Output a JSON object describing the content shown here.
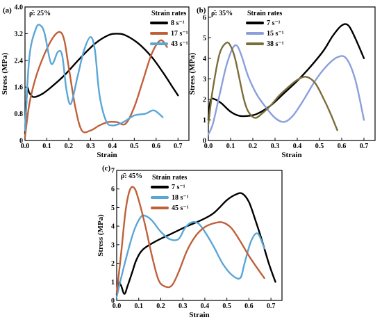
{
  "chart_data": [
    {
      "type": "line",
      "panel_label": "(a)",
      "density_label": "ρ̄: 25%",
      "legend_title": "Strain rates",
      "legend_position": "top-right",
      "xlabel": "Strain",
      "ylabel": "Stress (MPa)",
      "xlim": [
        0,
        0.75
      ],
      "ylim": [
        0,
        4.0
      ],
      "xticks": [
        "0.0",
        "0.1",
        "0.2",
        "0.3",
        "0.4",
        "0.5",
        "0.6",
        "0.7"
      ],
      "xtick_values": [
        0,
        0.1,
        0.2,
        0.3,
        0.4,
        0.5,
        0.6,
        0.7
      ],
      "yticks": [
        "0",
        "0.8",
        "1.6",
        "2.4",
        "3.2",
        "4.0"
      ],
      "ytick_values": [
        0,
        0.8,
        1.6,
        2.4,
        3.2,
        4.0
      ],
      "series": [
        {
          "name": "8 s⁻¹",
          "color": "#000000",
          "x": [
            0,
            0.01,
            0.02,
            0.04,
            0.08,
            0.12,
            0.18,
            0.25,
            0.32,
            0.38,
            0.42,
            0.46,
            0.52,
            0.58,
            0.63,
            0.67,
            0.7
          ],
          "y": [
            0.2,
            1.5,
            1.42,
            1.3,
            1.4,
            1.6,
            1.95,
            2.45,
            2.9,
            3.15,
            3.2,
            3.15,
            2.9,
            2.5,
            2.05,
            1.65,
            1.35
          ]
        },
        {
          "name": "17 s⁻¹",
          "color": "#c0603a",
          "x": [
            0,
            0.02,
            0.05,
            0.09,
            0.13,
            0.16,
            0.18,
            0.2,
            0.23,
            0.26,
            0.3,
            0.34,
            0.38,
            0.42,
            0.46,
            0.5,
            0.54,
            0.58,
            0.62,
            0.65
          ],
          "y": [
            0.1,
            1.1,
            1.9,
            2.6,
            3.1,
            3.25,
            3.0,
            2.2,
            1.0,
            0.3,
            0.3,
            0.45,
            0.55,
            0.55,
            0.5,
            1.0,
            1.8,
            2.6,
            3.0,
            2.8
          ]
        },
        {
          "name": "43 s⁻¹",
          "color": "#5aa6d6",
          "x": [
            0,
            0.02,
            0.05,
            0.07,
            0.09,
            0.12,
            0.15,
            0.17,
            0.19,
            0.21,
            0.24,
            0.27,
            0.3,
            0.32,
            0.34,
            0.37,
            0.4,
            0.45,
            0.5,
            0.55,
            0.59,
            0.63
          ],
          "y": [
            0.3,
            2.5,
            3.35,
            3.45,
            3.2,
            2.3,
            2.65,
            2.55,
            1.5,
            1.1,
            1.9,
            2.7,
            3.1,
            2.7,
            1.4,
            0.6,
            0.45,
            0.55,
            0.75,
            0.8,
            0.9,
            0.7
          ]
        }
      ]
    },
    {
      "type": "line",
      "panel_label": "(b)",
      "density_label": "ρ̄: 35%",
      "legend_title": "Strain rates",
      "legend_position": "top-left",
      "xlabel": "Strain",
      "ylabel": "Stress (MPa)",
      "xlim": [
        0,
        0.75
      ],
      "ylim": [
        0,
        6.5
      ],
      "xticks": [
        "0.0",
        "0.1",
        "0.2",
        "0.3",
        "0.4",
        "0.5",
        "0.6",
        "0.7"
      ],
      "xtick_values": [
        0,
        0.1,
        0.2,
        0.3,
        0.4,
        0.5,
        0.6,
        0.7
      ],
      "yticks": [
        "0",
        "1",
        "2",
        "3",
        "4",
        "5",
        "6"
      ],
      "ytick_values": [
        0,
        1,
        2,
        3,
        4,
        5,
        6
      ],
      "series": [
        {
          "name": "7 s⁻¹",
          "color": "#000000",
          "x": [
            0,
            0.01,
            0.03,
            0.06,
            0.1,
            0.14,
            0.18,
            0.22,
            0.28,
            0.34,
            0.4,
            0.46,
            0.52,
            0.56,
            0.6,
            0.63,
            0.66,
            0.7
          ],
          "y": [
            1.0,
            1.95,
            2.0,
            1.8,
            1.4,
            1.2,
            1.2,
            1.3,
            1.7,
            2.3,
            2.9,
            3.6,
            4.4,
            5.1,
            5.6,
            5.6,
            5.0,
            4.0
          ]
        },
        {
          "name": "15 s⁻¹",
          "color": "#8a9fdc",
          "x": [
            0,
            0.02,
            0.05,
            0.08,
            0.11,
            0.13,
            0.15,
            0.18,
            0.22,
            0.26,
            0.3,
            0.34,
            0.38,
            0.43,
            0.48,
            0.53,
            0.58,
            0.62,
            0.66,
            0.7
          ],
          "y": [
            0.3,
            0.8,
            2.2,
            3.6,
            4.5,
            4.6,
            4.1,
            3.1,
            2.2,
            1.6,
            1.1,
            0.9,
            1.2,
            2.0,
            2.9,
            3.6,
            4.05,
            4.0,
            3.0,
            1.0
          ]
        },
        {
          "name": "38 s⁻¹",
          "color": "#7a6e3a",
          "x": [
            0,
            0.02,
            0.05,
            0.08,
            0.1,
            0.12,
            0.14,
            0.16,
            0.18,
            0.21,
            0.24,
            0.28,
            0.32,
            0.36,
            0.4,
            0.44,
            0.48,
            0.52,
            0.55,
            0.58
          ],
          "y": [
            0.8,
            2.5,
            4.2,
            4.75,
            4.6,
            4.0,
            3.0,
            2.0,
            1.4,
            1.1,
            1.3,
            1.7,
            2.2,
            2.6,
            2.95,
            3.1,
            2.8,
            2.0,
            1.3,
            0.5
          ]
        }
      ]
    },
    {
      "type": "line",
      "panel_label": "(c)",
      "density_label": "ρ̄: 45%",
      "legend_title": "Strain rates",
      "legend_position": "top-left",
      "xlabel": "Strain",
      "ylabel": "Stress (MPa)",
      "xlim": [
        0,
        0.75
      ],
      "ylim": [
        0,
        7.0
      ],
      "xticks": [
        "0.0",
        "0.1",
        "0.2",
        "0.3",
        "0.4",
        "0.5",
        "0.6",
        "0.7"
      ],
      "xtick_values": [
        0,
        0.1,
        0.2,
        0.3,
        0.4,
        0.5,
        0.6,
        0.7
      ],
      "yticks": [
        "0",
        "1",
        "2",
        "3",
        "4",
        "5",
        "6",
        "7"
      ],
      "ytick_values": [
        0,
        1,
        2,
        3,
        4,
        5,
        6,
        7
      ],
      "series": [
        {
          "name": "7 s⁻¹",
          "color": "#000000",
          "x": [
            0,
            0.01,
            0.02,
            0.035,
            0.05,
            0.07,
            0.09,
            0.12,
            0.18,
            0.25,
            0.32,
            0.38,
            0.44,
            0.5,
            0.54,
            0.57,
            0.6,
            0.63,
            0.66,
            0.69,
            0.72
          ],
          "y": [
            0.3,
            0.9,
            0.8,
            0.35,
            0.8,
            1.5,
            2.2,
            2.75,
            3.2,
            3.6,
            4.0,
            4.3,
            4.7,
            5.4,
            5.7,
            5.75,
            5.3,
            4.3,
            3.2,
            2.0,
            1.0
          ]
        },
        {
          "name": "18 s⁻¹",
          "color": "#5aa6d6",
          "x": [
            0,
            0.02,
            0.05,
            0.08,
            0.11,
            0.13,
            0.16,
            0.2,
            0.24,
            0.28,
            0.31,
            0.34,
            0.37,
            0.4,
            0.44,
            0.48,
            0.52,
            0.56,
            0.58,
            0.61,
            0.64,
            0.67
          ],
          "y": [
            0.2,
            1.2,
            2.6,
            3.8,
            4.5,
            4.55,
            4.3,
            3.7,
            3.3,
            3.3,
            3.9,
            4.2,
            4.15,
            3.7,
            2.9,
            2.0,
            1.4,
            1.2,
            2.0,
            3.2,
            3.6,
            2.8
          ]
        },
        {
          "name": "45 s⁻¹",
          "color": "#c0603a",
          "x": [
            0,
            0.02,
            0.04,
            0.06,
            0.08,
            0.1,
            0.13,
            0.16,
            0.19,
            0.22,
            0.25,
            0.28,
            0.32,
            0.36,
            0.4,
            0.44,
            0.48,
            0.52,
            0.56,
            0.6,
            0.64,
            0.67
          ],
          "y": [
            0.4,
            2.5,
            4.8,
            5.95,
            6.05,
            5.4,
            4.0,
            2.4,
            1.1,
            0.75,
            0.8,
            1.5,
            2.7,
            3.5,
            3.95,
            4.15,
            4.2,
            3.9,
            3.2,
            2.4,
            1.7,
            1.2
          ]
        }
      ]
    }
  ]
}
